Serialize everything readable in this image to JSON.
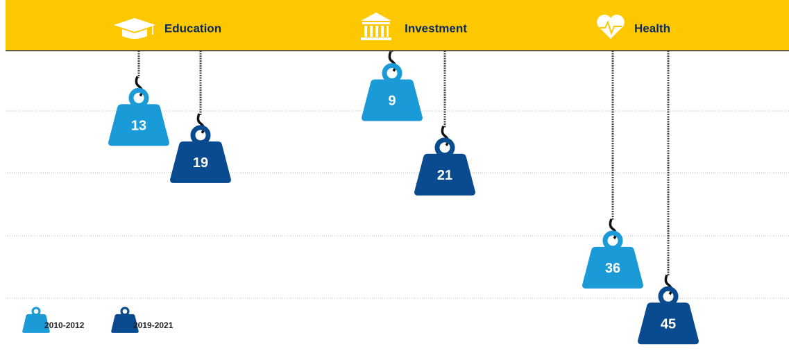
{
  "chart_data": {
    "type": "hanging-weight",
    "categories": [
      "Education",
      "Investment",
      "Health"
    ],
    "series": [
      {
        "name": "2010-2012",
        "color": "#1a9ad6",
        "values": [
          13,
          9,
          36
        ]
      },
      {
        "name": "2019-2021",
        "color": "#0a4a8f",
        "values": [
          19,
          21,
          45
        ]
      }
    ],
    "ylim": [
      0,
      50
    ]
  }
}
